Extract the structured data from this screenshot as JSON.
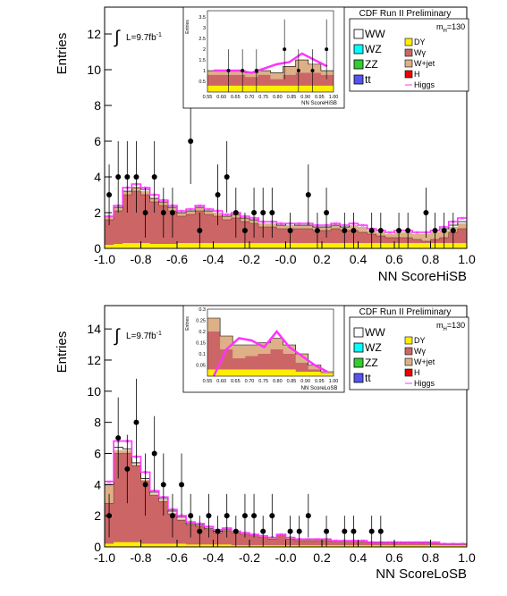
{
  "colors": {
    "wgamma": "#cc6666",
    "wjet": "#ddb088",
    "dy": "#ffee00",
    "higgs": "#ff33ff",
    "frame": "#000000"
  },
  "panels": [
    {
      "banner": "CDF Run II Preliminary",
      "lumi_text": "L=9.7fb",
      "lumi_sup": "-1",
      "ylabel": "Entries",
      "xlabel": "NN ScoreHiSB",
      "legend_title_main": "m",
      "legend_title_sub": "H",
      "legend_title_val": "=130",
      "legend_left": [
        "WW",
        "WZ",
        "ZZ",
        "tt"
      ],
      "legend_right": [
        "DY",
        "Wγ",
        "W+jet",
        "H",
        "Higgs"
      ],
      "inset": {
        "ylabel": "Entries",
        "xlabel": "NN ScoreHiSB",
        "xticks": [
          "0.55",
          "0.60",
          "0.65",
          "0.70",
          "0.75",
          "0.80",
          "0.85",
          "0.90",
          "0.95",
          "1.00"
        ],
        "yticks": [
          "0.5",
          "1",
          "1.5",
          "2",
          "2.5",
          "3",
          "3.5"
        ]
      }
    },
    {
      "banner": "CDF Run II Preliminary",
      "lumi_text": "L=9.7fb",
      "lumi_sup": "-1",
      "ylabel": "Entries",
      "xlabel": "NN ScoreLoSB",
      "legend_title_main": "m",
      "legend_title_sub": "H",
      "legend_title_val": "=130",
      "legend_left": [
        "WW",
        "WZ",
        "ZZ",
        "tt"
      ],
      "legend_right": [
        "DY",
        "Wγ",
        "W+jet",
        "H",
        "Higgs"
      ],
      "inset": {
        "ylabel": "Entries",
        "xlabel": "NN ScoreLoSB",
        "xticks": [
          "0.55",
          "0.60",
          "0.65",
          "0.70",
          "0.75",
          "0.80",
          "0.85",
          "0.90",
          "0.95",
          "1.00"
        ],
        "yticks": [
          "0.05",
          "0.1",
          "0.15",
          "0.2",
          "0.25",
          "0.3"
        ]
      }
    }
  ],
  "chart_data": [
    {
      "type": "bar",
      "title": "CDF Run II Preliminary",
      "xlabel": "NN ScoreHiSB",
      "ylabel": "Entries",
      "xlim": [
        -1.0,
        1.0
      ],
      "ylim": [
        0,
        13.5
      ],
      "xticks": [
        "-1.0",
        "-0.8",
        "-0.6",
        "-0.4",
        "-0.2",
        "-0.0",
        "0.2",
        "0.4",
        "0.6",
        "0.8",
        "1.0"
      ],
      "yticks": [
        "0",
        "2",
        "4",
        "6",
        "8",
        "10",
        "12"
      ],
      "bin_edges_start": -1.0,
      "bin_width": 0.05,
      "mc_total": [
        1.8,
        2.3,
        3.2,
        3.4,
        3.3,
        2.8,
        2.6,
        2.3,
        2.0,
        2.1,
        2.3,
        2.1,
        2.1,
        1.8,
        1.9,
        1.7,
        1.6,
        1.5,
        1.5,
        1.3,
        1.4,
        1.3,
        1.3,
        1.2,
        1.2,
        1.3,
        1.2,
        1.4,
        1.3,
        1.1,
        1.0,
        0.9,
        1.0,
        1.0,
        0.9,
        0.9,
        1.0,
        1.1,
        1.3,
        1.5
      ],
      "wjet_top": [
        1.8,
        2.3,
        3.2,
        3.4,
        3.2,
        2.8,
        2.6,
        2.3,
        2.0,
        2.1,
        2.3,
        2.1,
        2.0,
        1.8,
        1.9,
        1.7,
        1.6,
        1.4,
        1.4,
        1.3,
        1.3,
        1.3,
        1.3,
        1.2,
        1.2,
        1.3,
        1.2,
        1.3,
        1.2,
        1.0,
        0.9,
        0.8,
        0.9,
        0.9,
        0.8,
        0.8,
        0.9,
        1.0,
        1.2,
        1.4
      ],
      "wgamma_top": [
        1.6,
        2.1,
        3.0,
        3.2,
        3.0,
        2.6,
        2.4,
        2.1,
        1.8,
        1.9,
        2.1,
        1.9,
        1.8,
        1.6,
        1.7,
        1.5,
        1.4,
        1.2,
        1.2,
        1.1,
        1.1,
        1.1,
        1.1,
        1.0,
        1.0,
        1.1,
        1.0,
        1.0,
        0.9,
        0.8,
        0.7,
        0.6,
        0.6,
        0.6,
        0.5,
        0.4,
        0.5,
        0.6,
        0.9,
        1.1
      ],
      "dy_top": [
        0.2,
        0.25,
        0.3,
        0.3,
        0.3,
        0.25,
        0.25,
        0.25,
        0.3,
        0.3,
        0.3,
        0.3,
        0.3,
        0.3,
        0.3,
        0.3,
        0.3,
        0.3,
        0.3,
        0.3,
        0.3,
        0.3,
        0.3,
        0.3,
        0.3,
        0.3,
        0.3,
        0.3,
        0.3,
        0.3,
        0.3,
        0.3,
        0.3,
        0.3,
        0.3,
        0.3,
        0.3,
        0.3,
        0.3,
        0.3
      ],
      "higgs": [
        1.8,
        2.4,
        3.4,
        3.6,
        3.4,
        3.0,
        2.7,
        2.4,
        2.1,
        2.2,
        2.4,
        2.2,
        2.1,
        1.9,
        2.0,
        1.8,
        1.7,
        1.5,
        1.5,
        1.4,
        1.4,
        1.4,
        1.4,
        1.3,
        1.3,
        1.4,
        1.3,
        1.4,
        1.3,
        1.1,
        1.0,
        0.9,
        1.0,
        1.0,
        0.9,
        0.9,
        1.0,
        1.2,
        1.5,
        1.7
      ],
      "data_points": [
        {
          "x": -0.975,
          "y": 3,
          "e": 1.7
        },
        {
          "x": -0.925,
          "y": 4,
          "e": 2.0
        },
        {
          "x": -0.875,
          "y": 4,
          "e": 2.0
        },
        {
          "x": -0.825,
          "y": 4,
          "e": 2.0
        },
        {
          "x": -0.775,
          "y": 2,
          "e": 1.4
        },
        {
          "x": -0.725,
          "y": 4,
          "e": 2.0
        },
        {
          "x": -0.675,
          "y": 2,
          "e": 1.4
        },
        {
          "x": -0.625,
          "y": 2,
          "e": 1.4
        },
        {
          "x": -0.525,
          "y": 6,
          "e": 2.4
        },
        {
          "x": -0.475,
          "y": 1,
          "e": 1.0
        },
        {
          "x": -0.375,
          "y": 3,
          "e": 1.7
        },
        {
          "x": -0.325,
          "y": 4,
          "e": 2.0
        },
        {
          "x": -0.275,
          "y": 2,
          "e": 1.4
        },
        {
          "x": -0.225,
          "y": 1,
          "e": 1.0
        },
        {
          "x": -0.175,
          "y": 2,
          "e": 1.4
        },
        {
          "x": -0.125,
          "y": 2,
          "e": 1.4
        },
        {
          "x": -0.075,
          "y": 2,
          "e": 1.4
        },
        {
          "x": 0.025,
          "y": 1,
          "e": 1.0
        },
        {
          "x": 0.125,
          "y": 3,
          "e": 1.7
        },
        {
          "x": 0.175,
          "y": 1,
          "e": 1.0
        },
        {
          "x": 0.225,
          "y": 2,
          "e": 1.4
        },
        {
          "x": 0.325,
          "y": 1,
          "e": 1.0
        },
        {
          "x": 0.375,
          "y": 1,
          "e": 1.0
        },
        {
          "x": 0.475,
          "y": 1,
          "e": 1.0
        },
        {
          "x": 0.525,
          "y": 1,
          "e": 1.0
        },
        {
          "x": 0.625,
          "y": 1,
          "e": 1.0
        },
        {
          "x": 0.675,
          "y": 1,
          "e": 1.0
        },
        {
          "x": 0.775,
          "y": 2,
          "e": 1.4
        },
        {
          "x": 0.825,
          "y": 1,
          "e": 1.0
        },
        {
          "x": 0.875,
          "y": 1,
          "e": 1.0
        },
        {
          "x": 0.925,
          "y": 1,
          "e": 1.0
        }
      ],
      "inset": {
        "xlim": [
          0.55,
          1.0
        ],
        "ylim": [
          0,
          3.8
        ],
        "mc_total": [
          1.0,
          1.0,
          1.0,
          0.9,
          1.0,
          0.9,
          1.2,
          1.5,
          1.3,
          1.0
        ],
        "wgamma_top": [
          0.8,
          0.8,
          0.8,
          0.7,
          0.8,
          0.6,
          0.8,
          0.9,
          0.9,
          0.8
        ],
        "dy_top": [
          0.3,
          0.3,
          0.3,
          0.3,
          0.3,
          0.3,
          0.3,
          0.3,
          0.3,
          0.3
        ],
        "higgs": [
          1.0,
          1.0,
          1.0,
          0.9,
          1.1,
          1.3,
          1.4,
          1.8,
          1.5,
          1.2
        ],
        "data_points": [
          {
            "x": 0.625,
            "y": 1,
            "e": 1.0
          },
          {
            "x": 0.675,
            "y": 1,
            "e": 1.0
          },
          {
            "x": 0.725,
            "y": 1,
            "e": 1.0
          },
          {
            "x": 0.825,
            "y": 2,
            "e": 1.4
          },
          {
            "x": 0.875,
            "y": 1,
            "e": 1.0
          },
          {
            "x": 0.925,
            "y": 1,
            "e": 1.0
          },
          {
            "x": 0.975,
            "y": 2,
            "e": 1.4
          }
        ]
      }
    },
    {
      "type": "bar",
      "title": "CDF Run II Preliminary",
      "xlabel": "NN ScoreLoSB",
      "ylabel": "Entries",
      "xlim": [
        -1.0,
        1.0
      ],
      "ylim": [
        0,
        15.5
      ],
      "xticks": [
        "-1.0",
        "-0.8",
        "-0.6",
        "-0.4",
        "-0.2",
        "-0.0",
        "0.2",
        "0.4",
        "0.6",
        "0.8",
        "1.0"
      ],
      "yticks": [
        "0",
        "2",
        "4",
        "6",
        "8",
        "10",
        "12",
        "14"
      ],
      "bin_edges_start": -1.0,
      "bin_width": 0.05,
      "mc_total": [
        4.0,
        6.4,
        6.3,
        5.4,
        4.4,
        3.5,
        3.1,
        2.3,
        1.9,
        1.5,
        1.4,
        1.2,
        1.0,
        1.1,
        1.0,
        0.9,
        0.8,
        0.7,
        0.6,
        0.8,
        0.6,
        0.5,
        0.5,
        0.5,
        0.5,
        0.4,
        0.4,
        0.4,
        0.4,
        0.3,
        0.3,
        0.3,
        0.3,
        0.3,
        0.3,
        0.3,
        0.3,
        0.2,
        0.2,
        0.2
      ],
      "wjet_top": [
        4.0,
        6.2,
        6.2,
        5.3,
        4.3,
        3.4,
        3.0,
        2.2,
        1.8,
        1.5,
        1.4,
        1.2,
        1.0,
        1.1,
        1.0,
        0.9,
        0.8,
        0.7,
        0.6,
        0.8,
        0.6,
        0.5,
        0.5,
        0.5,
        0.5,
        0.4,
        0.4,
        0.4,
        0.4,
        0.3,
        0.3,
        0.3,
        0.3,
        0.3,
        0.3,
        0.3,
        0.3,
        0.2,
        0.2,
        0.2
      ],
      "wgamma_top": [
        2.8,
        6.0,
        6.0,
        5.2,
        4.2,
        3.3,
        2.9,
        2.1,
        1.7,
        1.4,
        1.3,
        1.1,
        0.9,
        1.0,
        0.9,
        0.8,
        0.7,
        0.6,
        0.5,
        0.7,
        0.5,
        0.4,
        0.4,
        0.4,
        0.4,
        0.3,
        0.3,
        0.3,
        0.3,
        0.25,
        0.25,
        0.25,
        0.25,
        0.25,
        0.25,
        0.25,
        0.2,
        0.15,
        0.15,
        0.15
      ],
      "dy_top": [
        0.2,
        0.3,
        0.3,
        0.3,
        0.2,
        0.2,
        0.2,
        0.2,
        0.2,
        0.15,
        0.15,
        0.15,
        0.15,
        0.15,
        0.1,
        0.1,
        0.1,
        0.1,
        0.1,
        0.1,
        0.1,
        0.1,
        0.1,
        0.1,
        0.1,
        0.1,
        0.1,
        0.1,
        0.1,
        0.1,
        0.1,
        0.1,
        0.1,
        0.1,
        0.1,
        0.1,
        0.1,
        0.1,
        0.1,
        0.1
      ],
      "higgs": [
        4.2,
        6.8,
        6.8,
        5.8,
        4.8,
        3.6,
        3.2,
        2.4,
        2.0,
        1.6,
        1.5,
        1.3,
        1.1,
        1.2,
        1.0,
        0.9,
        0.8,
        0.7,
        0.6,
        0.8,
        0.6,
        0.5,
        0.5,
        0.5,
        0.5,
        0.4,
        0.4,
        0.4,
        0.4,
        0.3,
        0.3,
        0.3,
        0.3,
        0.3,
        0.3,
        0.3,
        0.3,
        0.2,
        0.2,
        0.2
      ],
      "data_points": [
        {
          "x": -0.975,
          "y": 2,
          "e": 1.4
        },
        {
          "x": -0.925,
          "y": 7,
          "e": 2.6
        },
        {
          "x": -0.875,
          "y": 5,
          "e": 2.2
        },
        {
          "x": -0.825,
          "y": 8,
          "e": 2.8
        },
        {
          "x": -0.775,
          "y": 4,
          "e": 2.0
        },
        {
          "x": -0.725,
          "y": 6,
          "e": 2.4
        },
        {
          "x": -0.675,
          "y": 4,
          "e": 2.0
        },
        {
          "x": -0.625,
          "y": 2,
          "e": 1.4
        },
        {
          "x": -0.575,
          "y": 4,
          "e": 2.0
        },
        {
          "x": -0.525,
          "y": 2,
          "e": 1.4
        },
        {
          "x": -0.475,
          "y": 1,
          "e": 1.0
        },
        {
          "x": -0.425,
          "y": 2,
          "e": 1.4
        },
        {
          "x": -0.375,
          "y": 1,
          "e": 1.0
        },
        {
          "x": -0.325,
          "y": 2,
          "e": 1.4
        },
        {
          "x": -0.275,
          "y": 1,
          "e": 1.0
        },
        {
          "x": -0.225,
          "y": 2,
          "e": 1.4
        },
        {
          "x": -0.175,
          "y": 2,
          "e": 1.4
        },
        {
          "x": -0.125,
          "y": 1,
          "e": 1.0
        },
        {
          "x": -0.075,
          "y": 2,
          "e": 1.4
        },
        {
          "x": 0.025,
          "y": 1,
          "e": 1.0
        },
        {
          "x": 0.075,
          "y": 1,
          "e": 1.0
        },
        {
          "x": 0.125,
          "y": 2,
          "e": 1.4
        },
        {
          "x": 0.225,
          "y": 1,
          "e": 1.0
        },
        {
          "x": 0.325,
          "y": 1,
          "e": 1.0
        },
        {
          "x": 0.375,
          "y": 1,
          "e": 1.0
        },
        {
          "x": 0.475,
          "y": 1,
          "e": 1.0
        },
        {
          "x": 0.525,
          "y": 1,
          "e": 1.0
        }
      ],
      "inset": {
        "xlim": [
          0.55,
          1.0
        ],
        "ylim": [
          0,
          0.3
        ],
        "mc_total": [
          0.26,
          0.18,
          0.14,
          0.14,
          0.15,
          0.17,
          0.14,
          0.1,
          0.05,
          0.02
        ],
        "wgamma_top": [
          0.2,
          0.12,
          0.08,
          0.09,
          0.1,
          0.12,
          0.1,
          0.06,
          0.03,
          0.01
        ],
        "dy_top": [
          0.03,
          0.03,
          0.03,
          0.03,
          0.03,
          0.03,
          0.03,
          0.02,
          0.02,
          0.01
        ],
        "higgs": [
          0.0,
          0.12,
          0.17,
          0.16,
          0.13,
          0.2,
          0.13,
          0.09,
          0.05,
          0.02
        ],
        "data_points": []
      }
    }
  ]
}
